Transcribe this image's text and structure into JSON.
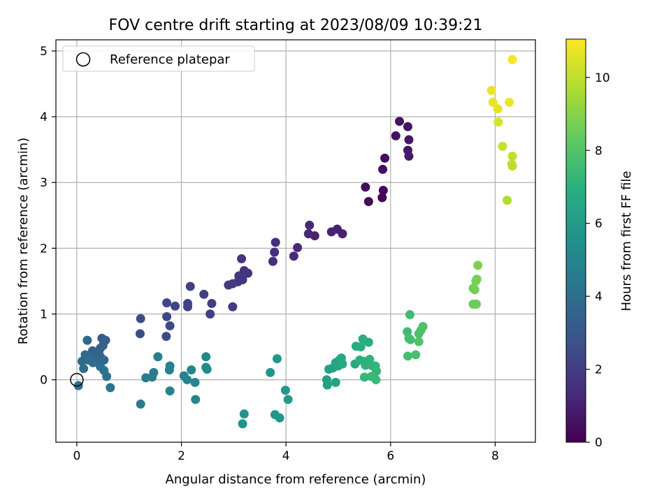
{
  "chart_data": {
    "type": "scatter",
    "title": "FOV centre drift starting at 2023/08/09 10:39:21",
    "xlabel": "Angular distance from reference (arcmin)",
    "ylabel": "Rotation from reference (arcmin)",
    "xlim": [
      -0.4,
      8.77
    ],
    "ylim": [
      -0.95,
      5.17
    ],
    "xticks": [
      0,
      2,
      4,
      6,
      8
    ],
    "yticks": [
      0,
      1,
      2,
      3,
      4,
      5
    ],
    "grid": true,
    "legend": {
      "position": "top-left",
      "entries": [
        "Reference platepar"
      ]
    },
    "reference_point": {
      "x": 0,
      "y": 0
    },
    "colorbar": {
      "label": "Hours from first FF file",
      "range": [
        0,
        11.05
      ],
      "ticks": [
        0,
        2,
        4,
        6,
        8,
        10
      ],
      "colormap": "viridis"
    },
    "points": [
      {
        "x": 5.84,
        "y": 2.77,
        "h": 0.1
      },
      {
        "x": 5.86,
        "y": 2.88,
        "h": 0.2
      },
      {
        "x": 5.58,
        "y": 2.71,
        "h": 0.3
      },
      {
        "x": 5.52,
        "y": 2.93,
        "h": 0.35
      },
      {
        "x": 5.85,
        "y": 3.2,
        "h": 0.4
      },
      {
        "x": 5.89,
        "y": 3.37,
        "h": 0.45
      },
      {
        "x": 6.1,
        "y": 3.71,
        "h": 0.5
      },
      {
        "x": 6.17,
        "y": 3.93,
        "h": 0.55
      },
      {
        "x": 6.33,
        "y": 3.85,
        "h": 0.6
      },
      {
        "x": 6.35,
        "y": 3.65,
        "h": 0.65
      },
      {
        "x": 6.33,
        "y": 3.49,
        "h": 0.7
      },
      {
        "x": 6.35,
        "y": 3.4,
        "h": 0.75
      },
      {
        "x": 5.08,
        "y": 2.22,
        "h": 1.0
      },
      {
        "x": 4.98,
        "y": 2.29,
        "h": 1.05
      },
      {
        "x": 4.87,
        "y": 2.25,
        "h": 1.1
      },
      {
        "x": 4.55,
        "y": 2.19,
        "h": 1.15
      },
      {
        "x": 4.43,
        "y": 2.22,
        "h": 1.2
      },
      {
        "x": 4.45,
        "y": 2.35,
        "h": 1.25
      },
      {
        "x": 4.22,
        "y": 2.01,
        "h": 1.3
      },
      {
        "x": 4.15,
        "y": 1.88,
        "h": 1.35
      },
      {
        "x": 3.8,
        "y": 2.09,
        "h": 1.4
      },
      {
        "x": 3.78,
        "y": 1.94,
        "h": 1.45
      },
      {
        "x": 3.75,
        "y": 1.8,
        "h": 1.5
      },
      {
        "x": 3.27,
        "y": 1.62,
        "h": 1.55
      },
      {
        "x": 3.2,
        "y": 1.66,
        "h": 1.6
      },
      {
        "x": 3.15,
        "y": 1.84,
        "h": 1.65
      },
      {
        "x": 3.1,
        "y": 1.58,
        "h": 1.7
      },
      {
        "x": 3.17,
        "y": 1.52,
        "h": 1.75
      },
      {
        "x": 3.08,
        "y": 1.49,
        "h": 1.8
      },
      {
        "x": 2.98,
        "y": 1.46,
        "h": 1.85
      },
      {
        "x": 2.9,
        "y": 1.44,
        "h": 1.9
      },
      {
        "x": 2.98,
        "y": 1.11,
        "h": 1.95
      },
      {
        "x": 2.58,
        "y": 1.16,
        "h": 2.0
      },
      {
        "x": 2.55,
        "y": 1.0,
        "h": 2.05
      },
      {
        "x": 2.43,
        "y": 1.3,
        "h": 2.1
      },
      {
        "x": 2.17,
        "y": 1.42,
        "h": 2.15
      },
      {
        "x": 2.12,
        "y": 1.16,
        "h": 2.2
      },
      {
        "x": 2.12,
        "y": 1.11,
        "h": 2.25
      },
      {
        "x": 1.88,
        "y": 1.12,
        "h": 2.3
      },
      {
        "x": 1.72,
        "y": 1.17,
        "h": 2.35
      },
      {
        "x": 1.72,
        "y": 0.96,
        "h": 2.4
      },
      {
        "x": 1.78,
        "y": 0.82,
        "h": 2.45
      },
      {
        "x": 1.71,
        "y": 0.66,
        "h": 2.5
      },
      {
        "x": 1.22,
        "y": 0.93,
        "h": 2.55
      },
      {
        "x": 1.21,
        "y": 0.7,
        "h": 2.6
      },
      {
        "x": 0.48,
        "y": 0.63,
        "h": 3.2
      },
      {
        "x": 0.55,
        "y": 0.6,
        "h": 3.25
      },
      {
        "x": 0.45,
        "y": 0.48,
        "h": 3.3
      },
      {
        "x": 0.5,
        "y": 0.52,
        "h": 3.35
      },
      {
        "x": 0.42,
        "y": 0.41,
        "h": 3.4
      },
      {
        "x": 0.3,
        "y": 0.44,
        "h": 3.45
      },
      {
        "x": 0.27,
        "y": 0.38,
        "h": 3.5
      },
      {
        "x": 0.35,
        "y": 0.33,
        "h": 3.55
      },
      {
        "x": 0.38,
        "y": 0.27,
        "h": 3.6
      },
      {
        "x": 0.45,
        "y": 0.35,
        "h": 3.65
      },
      {
        "x": 0.52,
        "y": 0.3,
        "h": 3.7
      },
      {
        "x": 0.2,
        "y": 0.6,
        "h": 3.75
      },
      {
        "x": 0.16,
        "y": 0.38,
        "h": 3.8
      },
      {
        "x": 0.1,
        "y": 0.28,
        "h": 3.85
      },
      {
        "x": 0.22,
        "y": 0.3,
        "h": 3.9
      },
      {
        "x": 0.31,
        "y": 0.26,
        "h": 3.95
      },
      {
        "x": 0.13,
        "y": 0.17,
        "h": 4.0
      },
      {
        "x": 0.45,
        "y": 0.2,
        "h": 4.05
      },
      {
        "x": 0.52,
        "y": 0.14,
        "h": 4.1
      },
      {
        "x": 0.57,
        "y": 0.05,
        "h": 4.15
      },
      {
        "x": 0.03,
        "y": -0.09,
        "h": 4.2
      },
      {
        "x": 0.64,
        "y": -0.12,
        "h": 4.25
      },
      {
        "x": 1.22,
        "y": -0.37,
        "h": 4.5
      },
      {
        "x": 1.32,
        "y": 0.03,
        "h": 4.55
      },
      {
        "x": 1.44,
        "y": 0.04,
        "h": 4.6
      },
      {
        "x": 1.47,
        "y": 0.11,
        "h": 4.65
      },
      {
        "x": 1.55,
        "y": 0.35,
        "h": 4.7
      },
      {
        "x": 1.77,
        "y": 0.15,
        "h": 4.75
      },
      {
        "x": 1.78,
        "y": 0.21,
        "h": 4.8
      },
      {
        "x": 1.78,
        "y": -0.17,
        "h": 4.85
      },
      {
        "x": 2.05,
        "y": 0.06,
        "h": 4.9
      },
      {
        "x": 2.11,
        "y": 0.0,
        "h": 4.95
      },
      {
        "x": 2.19,
        "y": 0.15,
        "h": 5.0
      },
      {
        "x": 2.26,
        "y": -0.04,
        "h": 5.05
      },
      {
        "x": 2.27,
        "y": -0.3,
        "h": 5.1
      },
      {
        "x": 2.47,
        "y": 0.35,
        "h": 5.15
      },
      {
        "x": 2.47,
        "y": 0.19,
        "h": 5.2
      },
      {
        "x": 2.49,
        "y": 0.16,
        "h": 5.25
      },
      {
        "x": 3.17,
        "y": -0.67,
        "h": 5.6
      },
      {
        "x": 3.2,
        "y": -0.52,
        "h": 5.65
      },
      {
        "x": 3.7,
        "y": 0.11,
        "h": 5.7
      },
      {
        "x": 3.79,
        "y": -0.53,
        "h": 5.75
      },
      {
        "x": 3.83,
        "y": 0.32,
        "h": 5.8
      },
      {
        "x": 3.88,
        "y": -0.58,
        "h": 5.85
      },
      {
        "x": 3.99,
        "y": -0.16,
        "h": 5.9
      },
      {
        "x": 4.04,
        "y": -0.3,
        "h": 5.95
      },
      {
        "x": 4.78,
        "y": 0.0,
        "h": 6.2
      },
      {
        "x": 4.79,
        "y": -0.08,
        "h": 6.25
      },
      {
        "x": 4.82,
        "y": 0.16,
        "h": 6.3
      },
      {
        "x": 4.9,
        "y": 0.18,
        "h": 6.35
      },
      {
        "x": 4.95,
        "y": -0.04,
        "h": 6.4
      },
      {
        "x": 4.95,
        "y": 0.26,
        "h": 6.45
      },
      {
        "x": 5.0,
        "y": 0.21,
        "h": 6.5
      },
      {
        "x": 5.02,
        "y": 0.3,
        "h": 6.55
      },
      {
        "x": 5.06,
        "y": 0.33,
        "h": 6.6
      },
      {
        "x": 5.08,
        "y": 0.24,
        "h": 6.65
      },
      {
        "x": 5.32,
        "y": 0.24,
        "h": 6.7
      },
      {
        "x": 5.34,
        "y": 0.51,
        "h": 6.75
      },
      {
        "x": 5.43,
        "y": 0.5,
        "h": 6.8
      },
      {
        "x": 5.47,
        "y": 0.62,
        "h": 6.85
      },
      {
        "x": 5.58,
        "y": 0.57,
        "h": 6.9
      },
      {
        "x": 5.41,
        "y": 0.3,
        "h": 6.95
      },
      {
        "x": 5.49,
        "y": 0.28,
        "h": 7.0
      },
      {
        "x": 5.52,
        "y": 0.22,
        "h": 7.05
      },
      {
        "x": 5.6,
        "y": 0.31,
        "h": 7.1
      },
      {
        "x": 5.65,
        "y": 0.21,
        "h": 7.15
      },
      {
        "x": 5.71,
        "y": 0.21,
        "h": 7.2
      },
      {
        "x": 5.73,
        "y": 0.13,
        "h": 7.25
      },
      {
        "x": 5.5,
        "y": 0.04,
        "h": 7.3
      },
      {
        "x": 5.63,
        "y": 0.05,
        "h": 7.35
      },
      {
        "x": 5.72,
        "y": 0.0,
        "h": 7.4
      },
      {
        "x": 6.32,
        "y": 0.73,
        "h": 7.5
      },
      {
        "x": 6.37,
        "y": 0.99,
        "h": 7.55
      },
      {
        "x": 6.35,
        "y": 0.63,
        "h": 7.6
      },
      {
        "x": 6.38,
        "y": 0.61,
        "h": 7.65
      },
      {
        "x": 6.33,
        "y": 0.36,
        "h": 7.7
      },
      {
        "x": 6.48,
        "y": 0.38,
        "h": 7.75
      },
      {
        "x": 6.54,
        "y": 0.7,
        "h": 7.8
      },
      {
        "x": 6.58,
        "y": 0.75,
        "h": 7.85
      },
      {
        "x": 6.62,
        "y": 0.81,
        "h": 7.9
      },
      {
        "x": 6.54,
        "y": 0.58,
        "h": 7.95
      },
      {
        "x": 7.58,
        "y": 1.15,
        "h": 8.5
      },
      {
        "x": 7.64,
        "y": 1.15,
        "h": 8.55
      },
      {
        "x": 7.58,
        "y": 1.39,
        "h": 8.6
      },
      {
        "x": 7.61,
        "y": 1.37,
        "h": 8.65
      },
      {
        "x": 7.63,
        "y": 1.5,
        "h": 8.7
      },
      {
        "x": 7.65,
        "y": 1.53,
        "h": 8.75
      },
      {
        "x": 7.67,
        "y": 1.74,
        "h": 8.8
      },
      {
        "x": 8.23,
        "y": 2.73,
        "h": 9.7
      },
      {
        "x": 8.33,
        "y": 3.25,
        "h": 9.9
      },
      {
        "x": 8.32,
        "y": 3.28,
        "h": 9.95
      },
      {
        "x": 8.33,
        "y": 3.4,
        "h": 10.0
      },
      {
        "x": 8.14,
        "y": 3.55,
        "h": 10.1
      },
      {
        "x": 8.06,
        "y": 3.92,
        "h": 10.4
      },
      {
        "x": 8.05,
        "y": 4.12,
        "h": 10.6
      },
      {
        "x": 7.96,
        "y": 4.22,
        "h": 10.7
      },
      {
        "x": 7.93,
        "y": 4.4,
        "h": 10.75
      },
      {
        "x": 8.27,
        "y": 4.22,
        "h": 10.8
      },
      {
        "x": 8.33,
        "y": 4.87,
        "h": 10.95
      }
    ]
  }
}
